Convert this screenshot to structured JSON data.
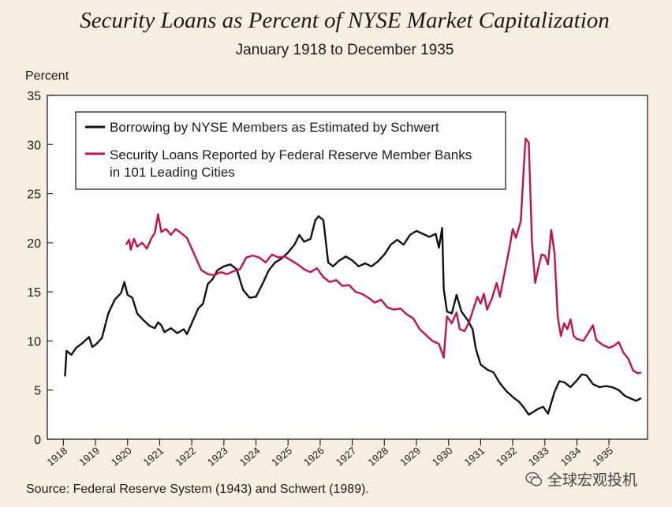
{
  "chart_data": {
    "type": "line",
    "title": "Security Loans as Percent of NYSE Market Capitalization",
    "subtitle": "January 1918 to December 1935",
    "ylabel": "Percent",
    "xlabel": "",
    "ylim": [
      0,
      35
    ],
    "xlim": [
      1917.5,
      1936.2
    ],
    "yticks": [
      0,
      5,
      10,
      15,
      20,
      25,
      30,
      35
    ],
    "xticks": [
      "1918",
      "1919",
      "1920",
      "1921",
      "1922",
      "1923",
      "1924",
      "1925",
      "1926",
      "1927",
      "1928",
      "1929",
      "1930",
      "1931",
      "1932",
      "1933",
      "1934",
      "1935"
    ],
    "legend_position": "top-left",
    "series": [
      {
        "name": "Borrowing by NYSE Members as Estimated by Schwert",
        "color": "#111111",
        "points": [
          [
            1918.05,
            6.4
          ],
          [
            1918.1,
            9.0
          ],
          [
            1918.25,
            8.6
          ],
          [
            1918.4,
            9.3
          ],
          [
            1918.6,
            9.8
          ],
          [
            1918.8,
            10.4
          ],
          [
            1918.9,
            9.4
          ],
          [
            1919.0,
            9.6
          ],
          [
            1919.2,
            10.3
          ],
          [
            1919.4,
            12.8
          ],
          [
            1919.6,
            14.2
          ],
          [
            1919.8,
            14.9
          ],
          [
            1919.9,
            16.0
          ],
          [
            1920.0,
            14.7
          ],
          [
            1920.15,
            14.4
          ],
          [
            1920.3,
            12.8
          ],
          [
            1920.5,
            12.1
          ],
          [
            1920.7,
            11.5
          ],
          [
            1920.85,
            11.3
          ],
          [
            1920.95,
            11.9
          ],
          [
            1921.05,
            11.6
          ],
          [
            1921.15,
            10.9
          ],
          [
            1921.35,
            11.3
          ],
          [
            1921.55,
            10.8
          ],
          [
            1921.75,
            11.2
          ],
          [
            1921.85,
            10.7
          ],
          [
            1922.0,
            11.8
          ],
          [
            1922.2,
            13.3
          ],
          [
            1922.35,
            13.8
          ],
          [
            1922.5,
            15.8
          ],
          [
            1922.65,
            16.3
          ],
          [
            1922.8,
            17.2
          ],
          [
            1923.0,
            17.6
          ],
          [
            1923.2,
            17.8
          ],
          [
            1923.4,
            17.3
          ],
          [
            1923.6,
            15.2
          ],
          [
            1923.8,
            14.4
          ],
          [
            1924.0,
            14.5
          ],
          [
            1924.2,
            15.8
          ],
          [
            1924.4,
            17.2
          ],
          [
            1924.6,
            18.0
          ],
          [
            1924.8,
            18.4
          ],
          [
            1925.0,
            19.0
          ],
          [
            1925.2,
            19.8
          ],
          [
            1925.35,
            20.8
          ],
          [
            1925.5,
            20.1
          ],
          [
            1925.7,
            20.4
          ],
          [
            1925.85,
            22.3
          ],
          [
            1925.95,
            22.7
          ],
          [
            1926.1,
            22.3
          ],
          [
            1926.25,
            18.0
          ],
          [
            1926.4,
            17.6
          ],
          [
            1926.6,
            18.2
          ],
          [
            1926.8,
            18.6
          ],
          [
            1927.0,
            18.2
          ],
          [
            1927.2,
            17.6
          ],
          [
            1927.4,
            17.9
          ],
          [
            1927.6,
            17.6
          ],
          [
            1927.8,
            18.1
          ],
          [
            1928.0,
            18.8
          ],
          [
            1928.2,
            19.8
          ],
          [
            1928.4,
            20.3
          ],
          [
            1928.6,
            19.8
          ],
          [
            1928.8,
            20.8
          ],
          [
            1929.0,
            21.2
          ],
          [
            1929.2,
            20.9
          ],
          [
            1929.4,
            20.6
          ],
          [
            1929.6,
            20.9
          ],
          [
            1929.7,
            19.5
          ],
          [
            1929.8,
            21.5
          ],
          [
            1929.85,
            15.3
          ],
          [
            1929.95,
            13.0
          ],
          [
            1930.1,
            12.8
          ],
          [
            1930.25,
            14.7
          ],
          [
            1930.4,
            13.0
          ],
          [
            1930.6,
            12.1
          ],
          [
            1930.75,
            11.2
          ],
          [
            1930.85,
            9.2
          ],
          [
            1931.0,
            7.6
          ],
          [
            1931.2,
            7.1
          ],
          [
            1931.4,
            6.8
          ],
          [
            1931.6,
            5.7
          ],
          [
            1931.8,
            4.9
          ],
          [
            1932.0,
            4.3
          ],
          [
            1932.2,
            3.8
          ],
          [
            1932.35,
            3.2
          ],
          [
            1932.5,
            2.5
          ],
          [
            1932.65,
            2.8
          ],
          [
            1932.8,
            3.1
          ],
          [
            1932.95,
            3.3
          ],
          [
            1933.1,
            2.6
          ],
          [
            1933.3,
            4.8
          ],
          [
            1933.45,
            5.9
          ],
          [
            1933.6,
            5.8
          ],
          [
            1933.8,
            5.3
          ],
          [
            1934.0,
            6.0
          ],
          [
            1934.15,
            6.6
          ],
          [
            1934.3,
            6.5
          ],
          [
            1934.5,
            5.6
          ],
          [
            1934.7,
            5.3
          ],
          [
            1934.9,
            5.4
          ],
          [
            1935.1,
            5.3
          ],
          [
            1935.3,
            5.0
          ],
          [
            1935.5,
            4.4
          ],
          [
            1935.7,
            4.1
          ],
          [
            1935.85,
            3.9
          ],
          [
            1936.0,
            4.2
          ]
        ]
      },
      {
        "name": "Security Loans Reported by Federal Reserve Member Banks in 101 Leading Cities",
        "color": "#c0134a",
        "points": [
          [
            1919.95,
            19.8
          ],
          [
            1920.05,
            20.3
          ],
          [
            1920.1,
            19.3
          ],
          [
            1920.2,
            20.4
          ],
          [
            1920.3,
            19.6
          ],
          [
            1920.45,
            20.0
          ],
          [
            1920.6,
            19.4
          ],
          [
            1920.75,
            20.5
          ],
          [
            1920.85,
            21.0
          ],
          [
            1920.95,
            22.9
          ],
          [
            1921.05,
            21.1
          ],
          [
            1921.2,
            21.4
          ],
          [
            1921.35,
            20.8
          ],
          [
            1921.5,
            21.4
          ],
          [
            1921.7,
            20.9
          ],
          [
            1921.85,
            20.5
          ],
          [
            1922.0,
            19.4
          ],
          [
            1922.15,
            18.3
          ],
          [
            1922.3,
            17.2
          ],
          [
            1922.5,
            16.8
          ],
          [
            1922.7,
            16.7
          ],
          [
            1922.9,
            17.0
          ],
          [
            1923.1,
            16.8
          ],
          [
            1923.3,
            17.1
          ],
          [
            1923.5,
            17.3
          ],
          [
            1923.7,
            18.5
          ],
          [
            1923.9,
            18.7
          ],
          [
            1924.1,
            18.5
          ],
          [
            1924.3,
            18.0
          ],
          [
            1924.5,
            18.8
          ],
          [
            1924.7,
            18.5
          ],
          [
            1924.9,
            18.6
          ],
          [
            1925.1,
            18.2
          ],
          [
            1925.3,
            17.8
          ],
          [
            1925.5,
            17.3
          ],
          [
            1925.7,
            17.0
          ],
          [
            1925.9,
            17.4
          ],
          [
            1926.1,
            16.5
          ],
          [
            1926.3,
            16.0
          ],
          [
            1926.5,
            16.2
          ],
          [
            1926.7,
            15.6
          ],
          [
            1926.9,
            15.7
          ],
          [
            1927.1,
            15.0
          ],
          [
            1927.3,
            14.8
          ],
          [
            1927.5,
            14.4
          ],
          [
            1927.7,
            13.9
          ],
          [
            1927.9,
            14.2
          ],
          [
            1928.1,
            13.4
          ],
          [
            1928.3,
            13.2
          ],
          [
            1928.5,
            13.3
          ],
          [
            1928.7,
            12.7
          ],
          [
            1928.9,
            12.3
          ],
          [
            1929.1,
            11.2
          ],
          [
            1929.3,
            10.6
          ],
          [
            1929.5,
            10.0
          ],
          [
            1929.7,
            9.7
          ],
          [
            1929.85,
            8.3
          ],
          [
            1929.95,
            12.5
          ],
          [
            1930.1,
            11.8
          ],
          [
            1930.25,
            12.9
          ],
          [
            1930.35,
            11.2
          ],
          [
            1930.5,
            11.0
          ],
          [
            1930.65,
            12.0
          ],
          [
            1930.8,
            13.5
          ],
          [
            1930.9,
            14.5
          ],
          [
            1931.0,
            13.8
          ],
          [
            1931.1,
            14.8
          ],
          [
            1931.2,
            13.2
          ],
          [
            1931.35,
            14.3
          ],
          [
            1931.5,
            15.9
          ],
          [
            1931.6,
            14.5
          ],
          [
            1931.75,
            17.0
          ],
          [
            1931.9,
            19.5
          ],
          [
            1932.0,
            21.4
          ],
          [
            1932.1,
            20.5
          ],
          [
            1932.25,
            22.2
          ],
          [
            1932.35,
            28.0
          ],
          [
            1932.4,
            30.6
          ],
          [
            1932.5,
            30.2
          ],
          [
            1932.6,
            20.0
          ],
          [
            1932.7,
            15.9
          ],
          [
            1932.8,
            17.5
          ],
          [
            1932.9,
            18.8
          ],
          [
            1933.0,
            18.7
          ],
          [
            1933.1,
            17.8
          ],
          [
            1933.2,
            21.3
          ],
          [
            1933.3,
            19.0
          ],
          [
            1933.4,
            12.5
          ],
          [
            1933.5,
            10.5
          ],
          [
            1933.6,
            11.8
          ],
          [
            1933.7,
            11.2
          ],
          [
            1933.8,
            12.2
          ],
          [
            1933.9,
            10.5
          ],
          [
            1934.0,
            10.2
          ],
          [
            1934.2,
            10.0
          ],
          [
            1934.35,
            10.8
          ],
          [
            1934.5,
            11.6
          ],
          [
            1934.6,
            10.1
          ],
          [
            1934.8,
            9.6
          ],
          [
            1935.0,
            9.3
          ],
          [
            1935.15,
            9.5
          ],
          [
            1935.3,
            9.9
          ],
          [
            1935.45,
            8.8
          ],
          [
            1935.6,
            8.2
          ],
          [
            1935.75,
            7.0
          ],
          [
            1935.9,
            6.7
          ],
          [
            1936.0,
            6.8
          ]
        ]
      }
    ],
    "source": "Source: Federal Reserve System (1943) and Schwert (1989).",
    "watermark": "全球宏观投机"
  },
  "colors": {
    "background": "#f6efe1",
    "plot_background": "#ffffff",
    "axis": "#222222",
    "series_black": "#111111",
    "series_red": "#c0134a"
  }
}
